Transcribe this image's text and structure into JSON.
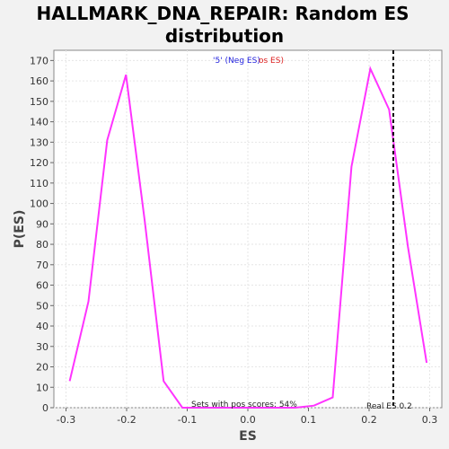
{
  "chart_data": {
    "type": "line",
    "title_line1": "HALLMARK_DNA_REPAIR: Random ES",
    "title_line2": "distribution",
    "xlabel": "ES",
    "ylabel": "P(ES)",
    "xlim": [
      -0.32,
      0.32
    ],
    "ylim": [
      0,
      175
    ],
    "x_ticks": [
      "-0.3",
      "-0.2",
      "-0.1",
      "0.0",
      "0.1",
      "0.2",
      "0.3"
    ],
    "x_tick_values": [
      -0.3,
      -0.2,
      -0.1,
      0.0,
      0.1,
      0.2,
      0.3
    ],
    "y_ticks": [
      0,
      10,
      20,
      30,
      40,
      50,
      60,
      70,
      80,
      90,
      100,
      110,
      120,
      130,
      140,
      150,
      160,
      170
    ],
    "grid": true,
    "line_color": "#ff33ff",
    "series": [
      {
        "x": [
          -0.294,
          -0.263,
          -0.232,
          -0.201,
          -0.17,
          -0.139,
          -0.108,
          -0.077,
          -0.046,
          -0.015,
          0.016,
          0.047,
          0.078,
          0.109,
          0.14,
          0.171,
          0.202,
          0.233,
          0.264,
          0.295
        ],
        "y": [
          13,
          52,
          131,
          163,
          91,
          13,
          0,
          0,
          0,
          0,
          0,
          0,
          0,
          1,
          5,
          118,
          166,
          146,
          79,
          22
        ]
      }
    ],
    "reference_line": {
      "x": 0.24,
      "label": "Real ES 0.2"
    },
    "annotations": {
      "sets_text": "Sets with pos scores: 54%",
      "legend_part1": "'5' (Neg ES)",
      "legend_part2": "os ES)"
    }
  }
}
